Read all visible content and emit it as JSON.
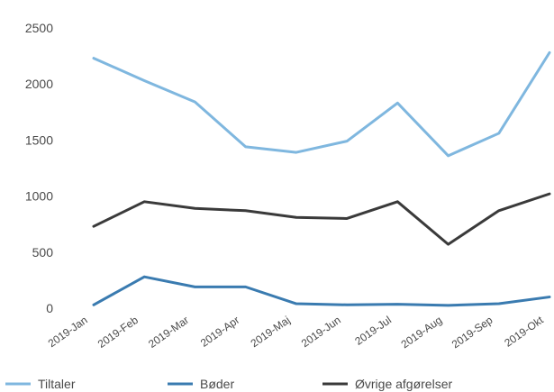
{
  "chart_data": {
    "type": "line",
    "categories": [
      "2019-Jan",
      "2019-Feb",
      "2019-Mar",
      "2019-Apr",
      "2019-Maj",
      "2019-Jun",
      "2019-Jul",
      "2019-Aug",
      "2019-Sep",
      "2019-Okt"
    ],
    "series": [
      {
        "name": "Tiltaler",
        "color": "#7fb7df",
        "values": [
          2230,
          2030,
          1840,
          1440,
          1390,
          1490,
          1830,
          1360,
          1560,
          2280
        ]
      },
      {
        "name": "Bøder",
        "color": "#3a7bb0",
        "values": [
          30,
          280,
          190,
          190,
          40,
          30,
          35,
          25,
          40,
          100
        ]
      },
      {
        "name": "Øvrige afgørelser",
        "color": "#3a3a3a",
        "values": [
          730,
          950,
          890,
          870,
          810,
          800,
          950,
          570,
          870,
          1020
        ]
      }
    ],
    "y_ticks": [
      "0",
      "500",
      "1000",
      "1500",
      "2000",
      "2500"
    ],
    "ylim": [
      0,
      2500
    ],
    "grid": false,
    "legend_position": "bottom"
  }
}
